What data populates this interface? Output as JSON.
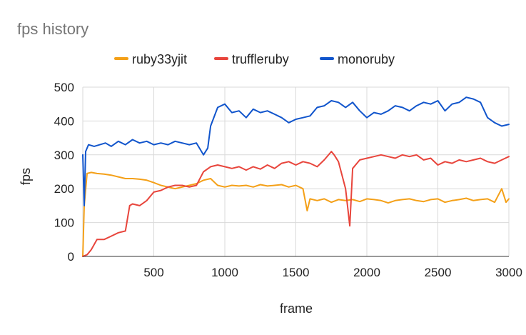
{
  "chart_data": {
    "type": "line",
    "title": "fps history",
    "xlabel": "frame",
    "ylabel": "fps",
    "xlim": [
      0,
      3000
    ],
    "ylim": [
      0,
      500
    ],
    "x_ticks": [
      "500",
      "1000",
      "1500",
      "2000",
      "2500",
      "3000"
    ],
    "y_ticks": [
      "0",
      "100",
      "200",
      "300",
      "400",
      "500"
    ],
    "grid": true,
    "legend_position": "top",
    "series": [
      {
        "name": "ruby33yjit",
        "color": "#f4a018",
        "x": [
          0,
          10,
          30,
          60,
          100,
          150,
          200,
          250,
          300,
          350,
          400,
          450,
          500,
          550,
          600,
          650,
          700,
          750,
          800,
          850,
          900,
          950,
          1000,
          1050,
          1100,
          1150,
          1200,
          1250,
          1300,
          1350,
          1400,
          1450,
          1500,
          1550,
          1580,
          1600,
          1650,
          1700,
          1750,
          1800,
          1850,
          1900,
          1950,
          2000,
          2050,
          2100,
          2150,
          2200,
          2250,
          2300,
          2350,
          2400,
          2450,
          2500,
          2550,
          2600,
          2650,
          2700,
          2750,
          2800,
          2850,
          2900,
          2950,
          2980,
          3000
        ],
        "values": [
          0,
          150,
          245,
          248,
          245,
          243,
          240,
          235,
          230,
          230,
          228,
          225,
          218,
          210,
          205,
          200,
          205,
          210,
          215,
          225,
          230,
          210,
          205,
          210,
          208,
          210,
          205,
          212,
          208,
          210,
          212,
          205,
          210,
          200,
          135,
          170,
          165,
          170,
          160,
          168,
          165,
          168,
          162,
          170,
          168,
          165,
          158,
          165,
          168,
          170,
          165,
          162,
          168,
          170,
          160,
          165,
          168,
          172,
          165,
          168,
          170,
          160,
          200,
          160,
          170
        ]
      },
      {
        "name": "truffleruby",
        "color": "#e8453c",
        "x": [
          0,
          30,
          60,
          100,
          150,
          200,
          250,
          300,
          330,
          350,
          400,
          450,
          500,
          550,
          600,
          650,
          700,
          750,
          800,
          850,
          900,
          950,
          1000,
          1050,
          1100,
          1150,
          1200,
          1250,
          1300,
          1350,
          1400,
          1450,
          1500,
          1550,
          1600,
          1650,
          1700,
          1750,
          1770,
          1800,
          1850,
          1880,
          1900,
          1950,
          2000,
          2050,
          2100,
          2150,
          2200,
          2250,
          2300,
          2350,
          2400,
          2450,
          2500,
          2550,
          2600,
          2650,
          2700,
          2750,
          2800,
          2850,
          2900,
          2950,
          3000
        ],
        "values": [
          0,
          5,
          20,
          50,
          50,
          60,
          70,
          75,
          150,
          155,
          150,
          165,
          190,
          195,
          205,
          210,
          210,
          205,
          210,
          250,
          265,
          270,
          265,
          260,
          265,
          255,
          265,
          258,
          270,
          260,
          275,
          280,
          270,
          280,
          275,
          265,
          285,
          310,
          300,
          280,
          200,
          90,
          260,
          285,
          290,
          295,
          300,
          295,
          290,
          300,
          295,
          300,
          285,
          290,
          270,
          280,
          275,
          285,
          280,
          285,
          290,
          280,
          275,
          285,
          295
        ]
      },
      {
        "name": "monoruby",
        "color": "#1155cc",
        "x": [
          0,
          10,
          20,
          40,
          80,
          120,
          160,
          200,
          250,
          300,
          350,
          400,
          450,
          500,
          550,
          600,
          650,
          700,
          750,
          800,
          850,
          880,
          900,
          950,
          1000,
          1050,
          1100,
          1150,
          1200,
          1250,
          1300,
          1350,
          1400,
          1450,
          1500,
          1550,
          1600,
          1650,
          1700,
          1750,
          1800,
          1850,
          1900,
          1950,
          2000,
          2050,
          2100,
          2150,
          2200,
          2250,
          2300,
          2350,
          2400,
          2450,
          2500,
          2550,
          2600,
          2650,
          2700,
          2750,
          2800,
          2850,
          2900,
          2950,
          3000
        ],
        "values": [
          300,
          150,
          310,
          330,
          325,
          330,
          335,
          325,
          340,
          330,
          345,
          335,
          340,
          330,
          335,
          330,
          340,
          335,
          330,
          335,
          300,
          320,
          385,
          440,
          450,
          425,
          430,
          410,
          435,
          425,
          430,
          420,
          410,
          395,
          405,
          410,
          415,
          440,
          445,
          460,
          455,
          440,
          455,
          430,
          410,
          425,
          420,
          430,
          445,
          440,
          430,
          445,
          455,
          450,
          460,
          430,
          450,
          455,
          470,
          465,
          455,
          410,
          395,
          385,
          390
        ]
      }
    ]
  }
}
